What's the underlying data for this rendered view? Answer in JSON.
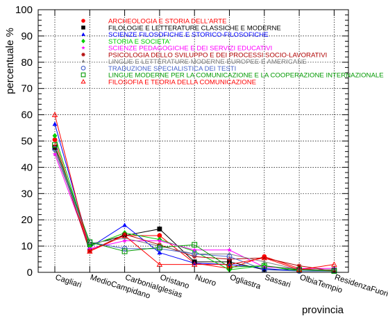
{
  "chart_data": {
    "type": "line",
    "xlabel": "provincia",
    "ylabel": "percentuale %",
    "ylim": [
      0,
      100
    ],
    "yticks": [
      0,
      10,
      20,
      30,
      40,
      50,
      60,
      70,
      80,
      90,
      100
    ],
    "grid": true,
    "legend_position": "top",
    "categories": [
      "Cagliari",
      "MedioCampidano",
      "CarboniaIglesias",
      "Oristano",
      "Nuoro",
      "Ogliastra",
      "Sassari",
      "OlbiaTempio",
      "ResidenzaFuoriSardegna"
    ],
    "series": [
      {
        "name": "ARCHEOLOGIA E STORIA DELL'ARTE",
        "color": "#ff0000",
        "marker": "circle",
        "values": [
          50.5,
          8.5,
          14.0,
          14.0,
          3.5,
          1.5,
          6.0,
          1.5,
          0.5
        ]
      },
      {
        "name": "FILOLOGIE E LETTERATURE CLASSICHE E MODERNE",
        "color": "#000000",
        "marker": "square",
        "values": [
          47.5,
          10.5,
          14.0,
          16.5,
          4.0,
          4.0,
          1.0,
          1.0,
          1.0
        ]
      },
      {
        "name": "SCIENZE FILOSOFICHE E STORICO-FILOSOFICHE",
        "color": "#0000ff",
        "marker": "triangle",
        "values": [
          56.5,
          9.5,
          18.0,
          7.5,
          3.5,
          3.0,
          1.5,
          0.5,
          0.5
        ]
      },
      {
        "name": "STORIA E SOCIETA'",
        "color": "#00cc00",
        "marker": "diamond",
        "values": [
          52.0,
          10.0,
          15.0,
          12.5,
          8.0,
          1.0,
          2.5,
          0.5,
          0.5
        ]
      },
      {
        "name": "SCIENZE PEDAGOGICHE E DEI SERVIZI EDUCATIVI",
        "color": "#ff00ff",
        "marker": "star",
        "values": [
          45.0,
          9.0,
          12.0,
          12.0,
          8.5,
          8.5,
          2.0,
          1.5,
          1.5
        ]
      },
      {
        "name": "PSICOLOGIA DELLO SVILUPPO E DEI PROCESSI SOCIO-LAVORATIVI",
        "color": "#b00000",
        "marker": "asterisk",
        "values": [
          48.0,
          8.0,
          14.5,
          10.5,
          6.0,
          5.0,
          5.5,
          2.5,
          0.5
        ]
      },
      {
        "name": "LINGUE E LETTERATURE MODERNE EUROPEE E AMERICANE",
        "color": "#808080",
        "marker": "smalldiamond",
        "values": [
          46.0,
          11.0,
          13.0,
          10.0,
          7.0,
          7.0,
          4.0,
          1.0,
          1.0
        ]
      },
      {
        "name": "TRADUZIONE SPECIALISTICA DEI TESTI",
        "color": "#4a66cc",
        "marker": "opencircle",
        "values": [
          47.0,
          11.5,
          9.0,
          9.0,
          7.0,
          6.0,
          1.0,
          0.5,
          0.5
        ]
      },
      {
        "name": "LINGUE MODERNE PER LA COMUNICAZIONE E LA COOPERAZIONE INTERNAZIONALE",
        "color": "#009900",
        "marker": "opensquare",
        "values": [
          48.5,
          11.5,
          8.0,
          9.5,
          10.5,
          2.0,
          2.5,
          1.0,
          0.5
        ]
      },
      {
        "name": "FILOSOFIA E TEORIA DELLA COMUNICAZIONE",
        "color": "#ff0000",
        "marker": "opentriangle",
        "values": [
          60.0,
          8.0,
          14.0,
          3.0,
          3.0,
          3.0,
          5.5,
          1.0,
          3.0
        ]
      }
    ]
  }
}
